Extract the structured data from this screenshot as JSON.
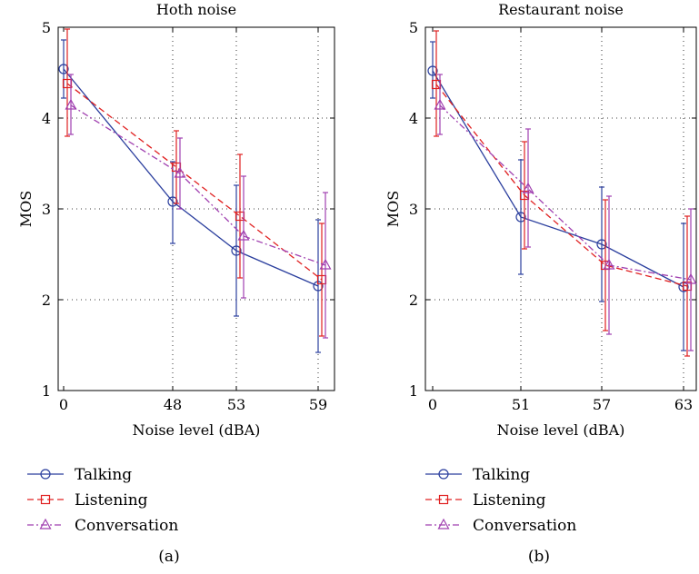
{
  "chart_data": [
    {
      "type": "line",
      "title": "Hoth noise",
      "xlabel": "Noise level (dBA)",
      "ylabel": "MOS",
      "categories": [
        "0",
        "48",
        "53",
        "59"
      ],
      "ylim": [
        1,
        5
      ],
      "yticks": [
        "1",
        "2",
        "3",
        "4",
        "5"
      ],
      "grid": true,
      "error_bars": true,
      "series": [
        {
          "name": "Talking",
          "marker": "circle",
          "color": "#2b3f9e",
          "dash": "solid",
          "values": [
            4.54,
            3.08,
            2.54,
            2.15
          ],
          "err_low": [
            4.22,
            2.62,
            1.82,
            1.42
          ],
          "err_high": [
            4.86,
            3.52,
            3.26,
            2.88
          ]
        },
        {
          "name": "Listening",
          "marker": "square",
          "color": "#e02020",
          "dash": "dashed",
          "values": [
            4.38,
            3.46,
            2.92,
            2.22
          ],
          "err_low": [
            3.8,
            3.06,
            2.24,
            1.6
          ],
          "err_high": [
            4.98,
            3.86,
            3.6,
            2.84
          ]
        },
        {
          "name": "Conversation",
          "marker": "triangle",
          "color": "#a040b0",
          "dash": "dashdot",
          "values": [
            4.14,
            3.39,
            2.7,
            2.38
          ],
          "err_low": [
            3.82,
            3.0,
            2.02,
            1.58
          ],
          "err_high": [
            4.48,
            3.78,
            3.36,
            3.18
          ]
        }
      ],
      "caption": "(a)"
    },
    {
      "type": "line",
      "title": "Restaurant noise",
      "xlabel": "Noise level (dBA)",
      "ylabel": "MOS",
      "categories": [
        "0",
        "51",
        "57",
        "63"
      ],
      "ylim": [
        1,
        5
      ],
      "yticks": [
        "1",
        "2",
        "3",
        "4",
        "5"
      ],
      "grid": true,
      "error_bars": true,
      "series": [
        {
          "name": "Talking",
          "marker": "circle",
          "color": "#2b3f9e",
          "dash": "solid",
          "values": [
            4.52,
            2.91,
            2.61,
            2.14
          ],
          "err_low": [
            4.22,
            2.28,
            1.98,
            1.44
          ],
          "err_high": [
            4.84,
            3.54,
            3.24,
            2.84
          ]
        },
        {
          "name": "Listening",
          "marker": "square",
          "color": "#e02020",
          "dash": "dashed",
          "values": [
            4.37,
            3.15,
            2.38,
            2.15
          ],
          "err_low": [
            3.8,
            2.56,
            1.66,
            1.38
          ],
          "err_high": [
            4.96,
            3.74,
            3.1,
            2.92
          ]
        },
        {
          "name": "Conversation",
          "marker": "triangle",
          "color": "#a040b0",
          "dash": "dashdot",
          "values": [
            4.14,
            3.22,
            2.38,
            2.22
          ],
          "err_low": [
            3.82,
            2.58,
            1.62,
            1.44
          ],
          "err_high": [
            4.48,
            3.88,
            3.14,
            3.0
          ]
        }
      ],
      "caption": "(b)"
    }
  ]
}
